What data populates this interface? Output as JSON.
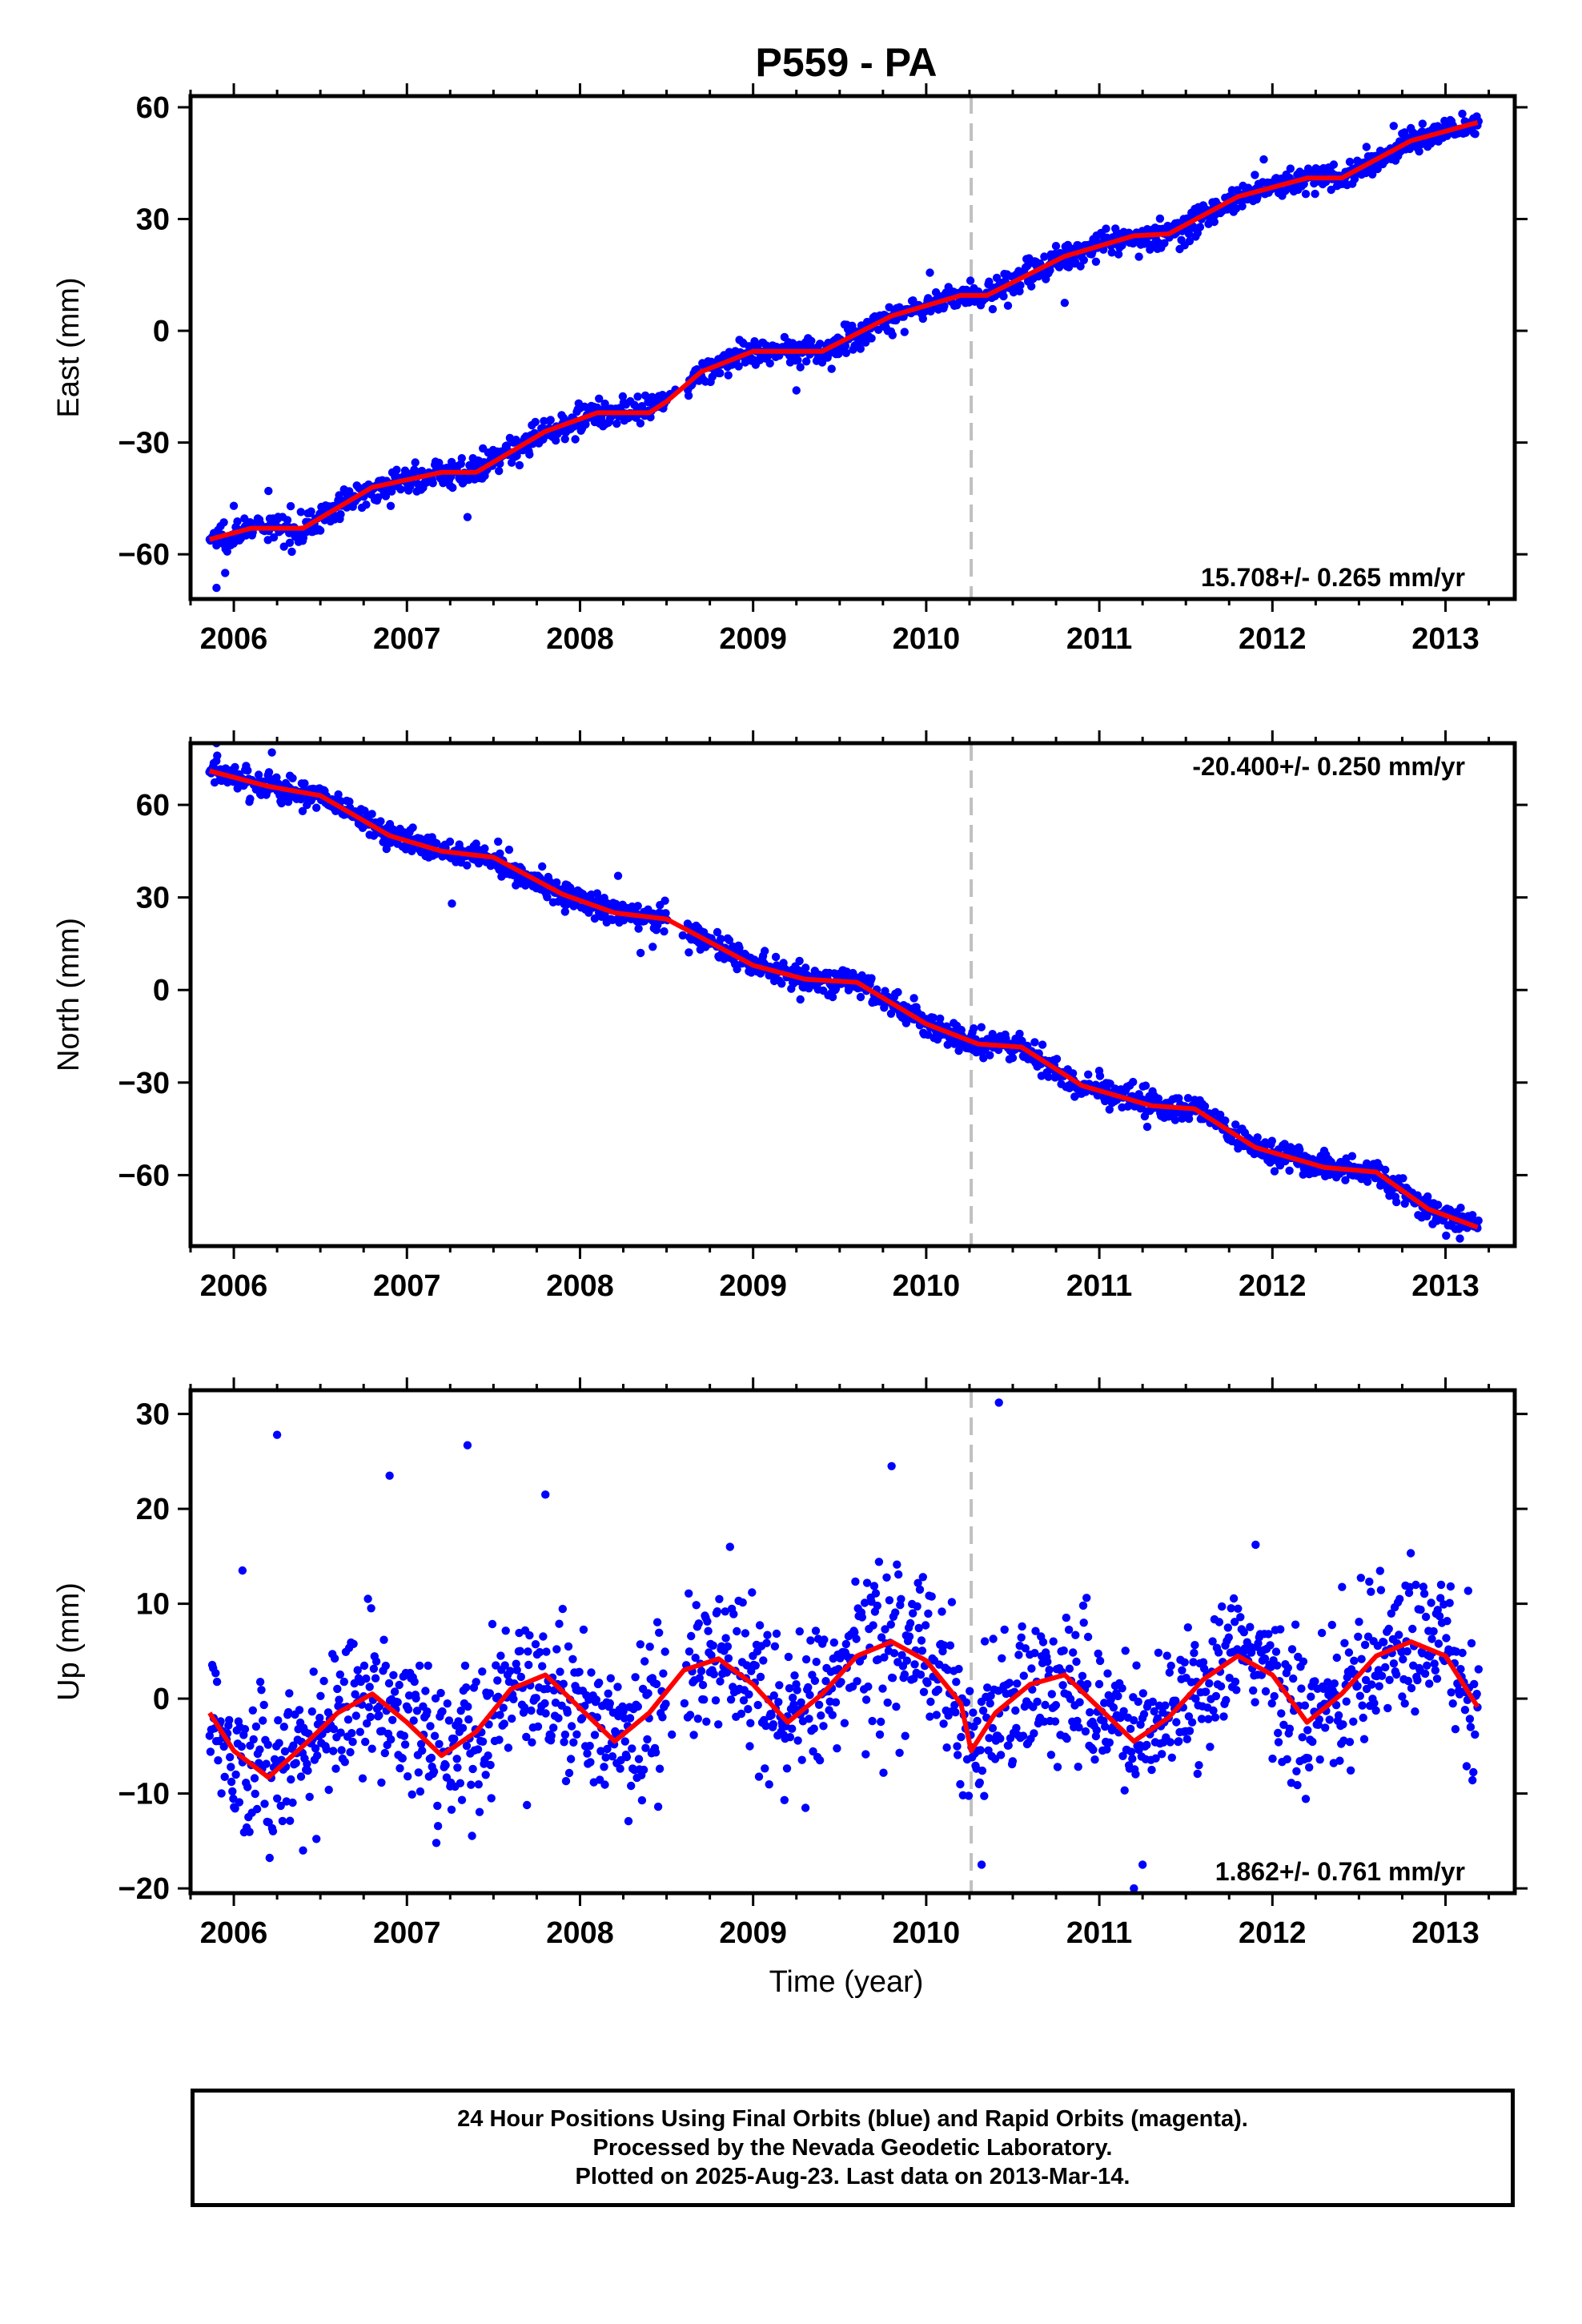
{
  "title": "P559 - PA",
  "x_axis_label": "Time (year)",
  "caption": [
    "24 Hour Positions Using Final Orbits (blue) and Rapid Orbits (magenta).",
    "Processed by the Nevada Geodetic Laboratory.",
    "Plotted on 2025-Aug-23. Last data on 2013-Mar-14."
  ],
  "colors": {
    "points": "#0000ff",
    "model": "#ff0000",
    "break_line": "#c0c0c0"
  },
  "chart_data": [
    {
      "type": "scatter",
      "name": "east",
      "ylabel": "East (mm)",
      "xlim": [
        2005.75,
        2013.4
      ],
      "ylim": [
        -72,
        63
      ],
      "xticks": [
        2006,
        2007,
        2008,
        2009,
        2010,
        2011,
        2012,
        2013
      ],
      "yticks": [
        -60,
        -30,
        0,
        30,
        60
      ],
      "equipment_change": 2010.26,
      "rate_text": "15.708+/- 0.265 mm/yr",
      "rate_position": "bottom-right",
      "trend": {
        "x0": 2005.86,
        "y0": -55.5,
        "rate": 15.708
      },
      "seasonal": {
        "amp": 2.3,
        "phase": 1.0
      },
      "noise": 1.8,
      "gap": [
        2008.5,
        2008.62
      ],
      "model_x": [
        2005.86,
        2006.1,
        2006.4,
        2006.8,
        2007.2,
        2007.4,
        2007.8,
        2008.1,
        2008.4,
        2008.5,
        2008.7,
        2009.0,
        2009.4,
        2009.8,
        2010.2,
        2010.35,
        2010.8,
        2011.2,
        2011.4,
        2011.8,
        2012.2,
        2012.4,
        2012.8,
        2013.19
      ],
      "model_y": [
        -56,
        -53,
        -53,
        -42,
        -38,
        -38,
        -27,
        -22,
        -22,
        -19,
        -11,
        -5.5,
        -5.5,
        4,
        9.5,
        9.5,
        20,
        25.5,
        26,
        36,
        41,
        41,
        51,
        56
      ],
      "outliers_x": [
        2005.9,
        2005.95,
        2006.0,
        2006.2,
        2007.35,
        2009.25,
        2010.8,
        2011.95
      ],
      "outliers_y": [
        -69,
        -65,
        -47,
        -43,
        -50,
        -16,
        7.5,
        46
      ]
    },
    {
      "type": "scatter",
      "name": "north",
      "ylabel": "North (mm)",
      "xlim": [
        2005.75,
        2013.4
      ],
      "ylim": [
        -83,
        80
      ],
      "xticks": [
        2006,
        2007,
        2008,
        2009,
        2010,
        2011,
        2012,
        2013
      ],
      "yticks": [
        -60,
        -30,
        0,
        30,
        60
      ],
      "equipment_change": 2010.26,
      "rate_text": "-20.400+/- 0.250 mm/yr",
      "rate_position": "top-right",
      "trend": {
        "x0": 2005.86,
        "y0": 70.5,
        "rate": -20.4
      },
      "seasonal": {
        "amp": 3.2,
        "phase": 0.3
      },
      "noise": 2.2,
      "gap": [
        2008.5,
        2008.62
      ],
      "model_x": [
        2005.86,
        2006.2,
        2006.5,
        2006.9,
        2007.2,
        2007.5,
        2007.9,
        2008.2,
        2008.5,
        2008.7,
        2009.0,
        2009.3,
        2009.6,
        2010.0,
        2010.3,
        2010.55,
        2010.9,
        2011.3,
        2011.55,
        2011.9,
        2012.3,
        2012.6,
        2012.9,
        2013.19
      ],
      "model_y": [
        71,
        66,
        63,
        50,
        45,
        43,
        31,
        25,
        23,
        17,
        8,
        3.5,
        2.5,
        -11,
        -17.5,
        -18.5,
        -31,
        -37.5,
        -38.5,
        -51,
        -57.5,
        -59,
        -71,
        -77
      ],
      "outliers_x": [
        2005.9,
        2006.22,
        2007.26,
        2008.35,
        2008.42,
        2008.22
      ],
      "outliers_y": [
        80,
        77,
        28,
        12,
        14,
        37
      ]
    },
    {
      "type": "scatter",
      "name": "up",
      "ylabel": "Up (mm)",
      "xlim": [
        2005.75,
        2013.4
      ],
      "ylim": [
        -20.5,
        32.5
      ],
      "xticks": [
        2006,
        2007,
        2008,
        2009,
        2010,
        2011,
        2012,
        2013
      ],
      "yticks": [
        -20,
        -10,
        0,
        10,
        20,
        30
      ],
      "equipment_change": 2010.26,
      "rate_text": "1.862+/- 0.761 mm/yr",
      "rate_position": "bottom-right",
      "trend": {
        "x0": 2005.86,
        "y0": -2.5,
        "rate": 1.862
      },
      "seasonal": {
        "amp": 5.5,
        "phase": 1.9
      },
      "noise": 3.9,
      "gap": [
        2008.5,
        2008.62
      ],
      "model_x": [
        2005.86,
        2006.0,
        2006.2,
        2006.4,
        2006.6,
        2006.8,
        2007.0,
        2007.2,
        2007.4,
        2007.6,
        2007.8,
        2008.0,
        2008.2,
        2008.4,
        2008.6,
        2008.8,
        2009.0,
        2009.2,
        2009.4,
        2009.6,
        2009.8,
        2010.0,
        2010.2,
        2010.26,
        2010.4,
        2010.6,
        2010.8,
        2011.0,
        2011.2,
        2011.4,
        2011.6,
        2011.8,
        2012.0,
        2012.2,
        2012.4,
        2012.6,
        2012.8,
        2013.0,
        2013.19
      ],
      "model_y": [
        -1.5,
        -5.5,
        -8.3,
        -5.0,
        -1.5,
        0.5,
        -2.5,
        -6.0,
        -3.5,
        1.0,
        2.5,
        -1.0,
        -4.5,
        -1.5,
        3.0,
        4.2,
        1.5,
        -2.5,
        0.5,
        4.5,
        6.0,
        4.0,
        -0.5,
        -5.5,
        -1.5,
        1.5,
        2.5,
        -1.0,
        -4.5,
        -2.0,
        2.0,
        4.5,
        2.5,
        -2.5,
        0.5,
        4.5,
        6.0,
        4.5,
        -1.0
      ],
      "outliers_x": [
        2006.25,
        2006.05,
        2006.9,
        2007.35,
        2007.8,
        2009.8,
        2010.42,
        2011.2,
        2011.25,
        2010.32,
        2006.4
      ],
      "outliers_y": [
        27.8,
        13.5,
        23.5,
        26.7,
        21.5,
        24.5,
        31.2,
        -20,
        -17.5,
        -17.5,
        -16
      ]
    }
  ]
}
